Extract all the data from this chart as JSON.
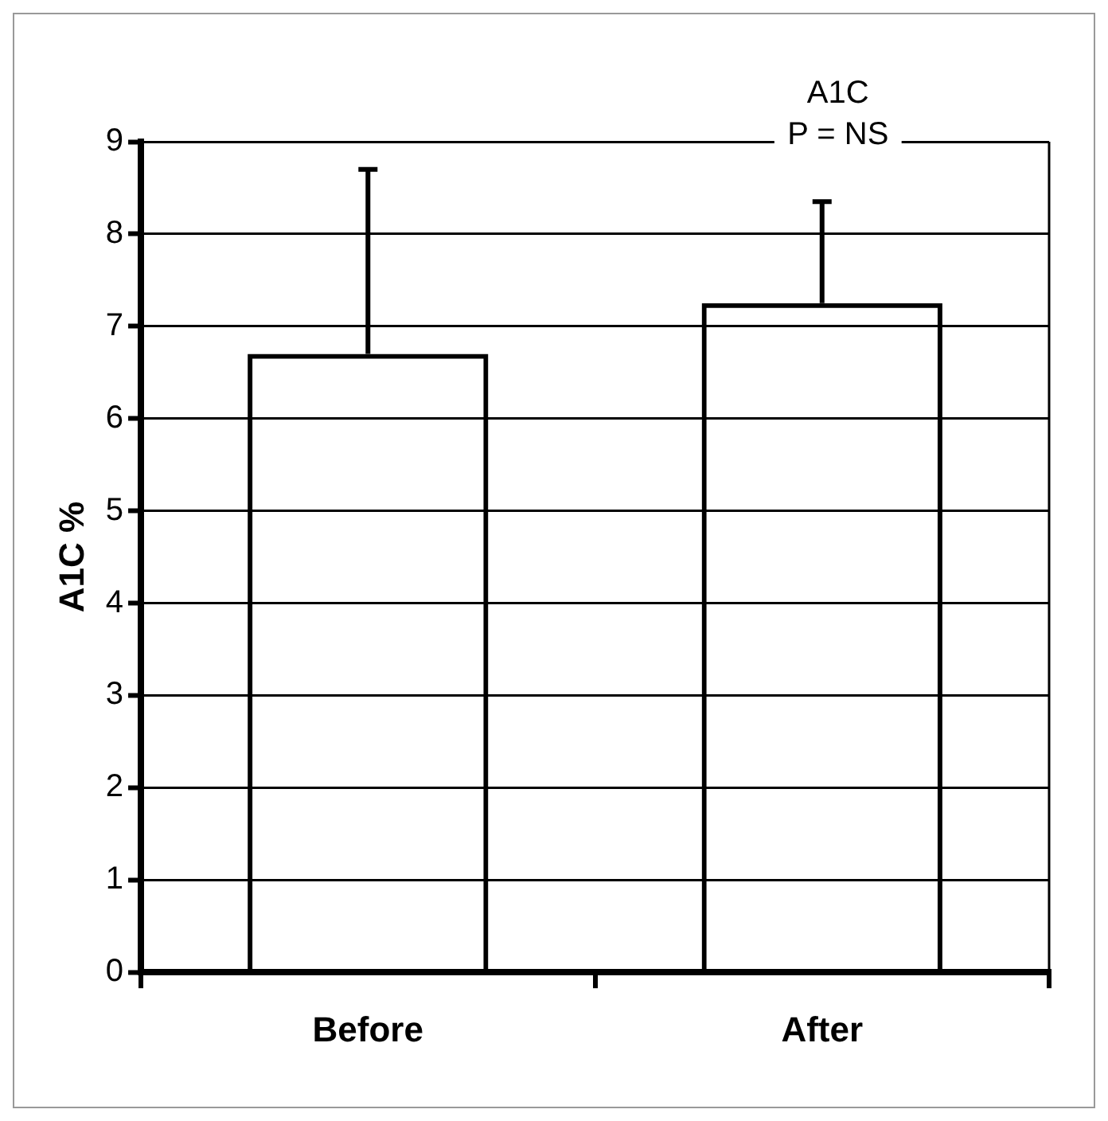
{
  "chart_data": {
    "type": "bar",
    "ylabel": "A1C %",
    "categories": [
      "Before",
      "After"
    ],
    "values": [
      6.7,
      7.25
    ],
    "errors": [
      [
        6.7,
        8.7
      ],
      [
        7.25,
        8.35
      ]
    ],
    "color": "#000000",
    "ylim": [
      0,
      9
    ],
    "yticks": [
      0,
      1,
      2,
      3,
      4,
      5,
      6,
      7,
      8,
      9
    ],
    "grid": "y",
    "annotations": [
      "A1C",
      "P = NS"
    ]
  }
}
